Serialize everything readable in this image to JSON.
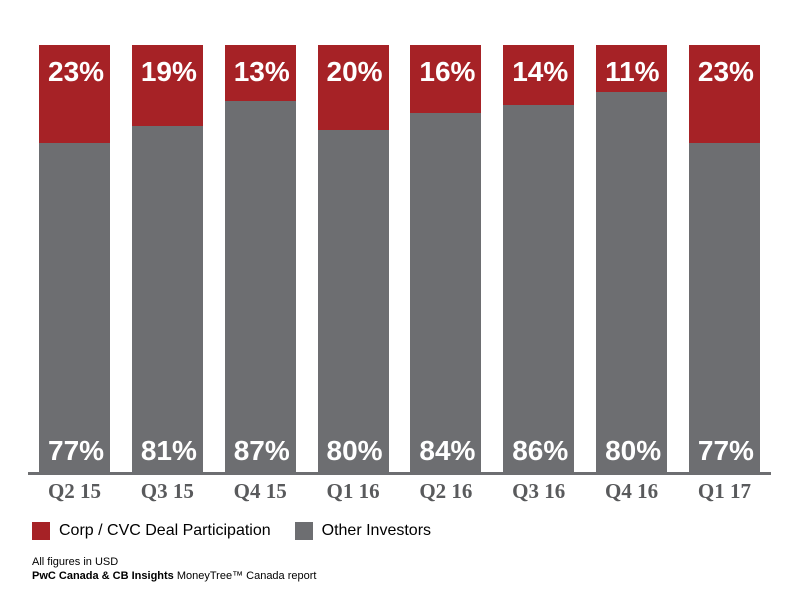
{
  "chart_data": {
    "type": "bar",
    "stacked": true,
    "categories": [
      "Q2 15",
      "Q3 15",
      "Q4 15",
      "Q1 16",
      "Q2 16",
      "Q3 16",
      "Q4 16",
      "Q1 17"
    ],
    "series": [
      {
        "name": "Corp / CVC Deal Participation",
        "color": "#A62226",
        "values": [
          23,
          19,
          13,
          20,
          16,
          14,
          11,
          23
        ],
        "labels": [
          "23%",
          "19%",
          "13%",
          "20%",
          "16%",
          "14%",
          "11%",
          "23%"
        ]
      },
      {
        "name": "Other Investors",
        "color": "#6D6E71",
        "values": [
          77,
          81,
          87,
          80,
          84,
          86,
          80,
          77
        ],
        "labels": [
          "77%",
          "81%",
          "87%",
          "80%",
          "84%",
          "86%",
          "80%",
          "77%"
        ]
      }
    ],
    "title": "",
    "xlabel": "",
    "ylabel": "",
    "ylim": [
      0,
      100
    ],
    "grid": false,
    "legend_position": "bottom-left",
    "axis_line_color": "#6D6E71",
    "bar_label_color": "#FFFFFF",
    "category_label_color": "#595A5C"
  },
  "legend": {
    "items": [
      {
        "label": "Corp / CVC Deal Participation",
        "color": "#A62226"
      },
      {
        "label": "Other Investors",
        "color": "#6D6E71"
      }
    ]
  },
  "footer": {
    "line1": "All figures in USD",
    "line2_bold": "PwC Canada & CB Insights",
    "line2_rest": " MoneyTree™ Canada report"
  }
}
